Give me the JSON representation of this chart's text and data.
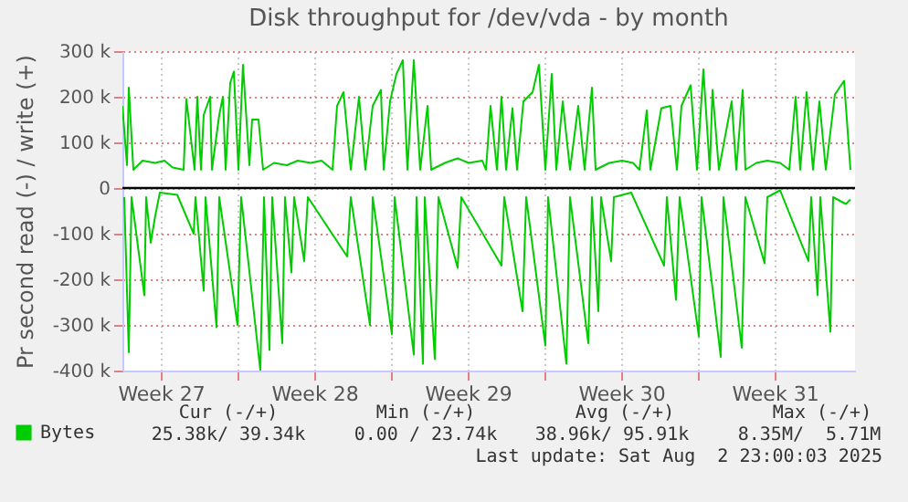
{
  "chart_data": {
    "type": "line",
    "title": "Disk throughput for /dev/vda - by month",
    "ylabel": "Pr second read (-) / write (+)",
    "xlim": [
      "2025-06-30T18:00",
      "2025-08-03T04:00"
    ],
    "xticks": [
      {
        "value": "2025-07-02T12:00",
        "label": "Week 27"
      },
      {
        "value": "2025-07-06T00:00",
        "label": null
      },
      {
        "value": "2025-07-09T12:00",
        "label": "Week 28"
      },
      {
        "value": "2025-07-13T00:00",
        "label": null
      },
      {
        "value": "2025-07-16T12:00",
        "label": "Week 29"
      },
      {
        "value": "2025-07-20T00:00",
        "label": null
      },
      {
        "value": "2025-07-23T12:00",
        "label": "Week 30"
      },
      {
        "value": "2025-07-27T00:00",
        "label": null
      },
      {
        "value": "2025-07-30T12:00",
        "label": "Week 31"
      }
    ],
    "ylim": [
      -400000,
      300000
    ],
    "yticks": [
      {
        "value": -400000,
        "label": "-400 k"
      },
      {
        "value": -300000,
        "label": "-300 k"
      },
      {
        "value": -200000,
        "label": "-200 k"
      },
      {
        "value": -100000,
        "label": "-100 k"
      },
      {
        "value": 0,
        "label": "0"
      },
      {
        "value": 100000,
        "label": "100 k"
      },
      {
        "value": 200000,
        "label": "200 k"
      },
      {
        "value": 300000,
        "label": "300 k"
      }
    ],
    "grid": true,
    "legend": "bottom left",
    "line_style": "solid",
    "ref_lines": [
      {
        "axis": "y",
        "value": 0,
        "color": "#000000"
      }
    ],
    "series": [
      {
        "name": "Bytes",
        "color": "#00cc00",
        "x": [
          "2025-06-30T18:00",
          "2025-06-30T23:00",
          "2025-07-01T01:00",
          "2025-07-01T06:00",
          "2025-07-01T16:00",
          "2025-07-02T06:00",
          "2025-07-02T16:00",
          "2025-07-03T01:00",
          "2025-07-03T13:00",
          "2025-07-03T16:00",
          "2025-07-04T01:00",
          "2025-07-04T04:00",
          "2025-07-04T08:00",
          "2025-07-04T11:00",
          "2025-07-04T18:00",
          "2025-07-04T20:00",
          "2025-07-05T04:00",
          "2025-07-05T08:00",
          "2025-07-05T11:00",
          "2025-07-05T16:00",
          "2025-07-05T20:00",
          "2025-07-06T01:00",
          "2025-07-06T06:00",
          "2025-07-06T13:00",
          "2025-07-06T16:00",
          "2025-07-06T23:00",
          "2025-07-07T04:00",
          "2025-07-07T16:00",
          "2025-07-08T06:00",
          "2025-07-08T18:00",
          "2025-07-09T08:00",
          "2025-07-09T20:00",
          "2025-07-10T08:00",
          "2025-07-10T13:00",
          "2025-07-10T20:00",
          "2025-07-11T04:00",
          "2025-07-11T13:00",
          "2025-07-11T20:00",
          "2025-07-12T04:00",
          "2025-07-12T13:00",
          "2025-07-12T16:00",
          "2025-07-12T23:00",
          "2025-07-13T06:00",
          "2025-07-13T13:00",
          "2025-07-13T18:00",
          "2025-07-14T01:00",
          "2025-07-14T08:00",
          "2025-07-14T16:00",
          "2025-07-14T20:00",
          "2025-07-15T11:00",
          "2025-07-16T01:00",
          "2025-07-16T13:00",
          "2025-07-17T04:00",
          "2025-07-17T08:00",
          "2025-07-17T13:00",
          "2025-07-17T20:00",
          "2025-07-18T01:00",
          "2025-07-18T06:00",
          "2025-07-18T13:00",
          "2025-07-18T18:00",
          "2025-07-19T01:00",
          "2025-07-19T11:00",
          "2025-07-19T18:00",
          "2025-07-20T01:00",
          "2025-07-20T08:00",
          "2025-07-20T13:00",
          "2025-07-20T20:00",
          "2025-07-21T04:00",
          "2025-07-21T13:00",
          "2025-07-21T20:00",
          "2025-07-22T04:00",
          "2025-07-22T08:00",
          "2025-07-22T23:00",
          "2025-07-23T13:00",
          "2025-07-24T01:00",
          "2025-07-24T08:00",
          "2025-07-24T16:00",
          "2025-07-24T20:00",
          "2025-07-25T08:00",
          "2025-07-25T18:00",
          "2025-07-26T01:00",
          "2025-07-26T06:00",
          "2025-07-26T16:00",
          "2025-07-26T23:00",
          "2025-07-27T06:00",
          "2025-07-27T13:00",
          "2025-07-27T16:00",
          "2025-07-27T23:00",
          "2025-07-28T13:00",
          "2025-07-28T18:00",
          "2025-07-29T01:00",
          "2025-07-29T04:00",
          "2025-07-29T16:00",
          "2025-07-30T04:00",
          "2025-07-30T18:00",
          "2025-07-31T04:00",
          "2025-07-31T11:00",
          "2025-07-31T16:00",
          "2025-07-31T23:00",
          "2025-08-01T06:00",
          "2025-08-01T13:00",
          "2025-08-01T20:00",
          "2025-08-02T06:00",
          "2025-08-02T16:00",
          "2025-08-02T23:00"
        ],
        "values": [
          180000,
          50000,
          220000,
          40000,
          60000,
          55000,
          60000,
          45000,
          40000,
          195000,
          40000,
          200000,
          40000,
          160000,
          200000,
          40000,
          160000,
          200000,
          40000,
          230000,
          255000,
          40000,
          270000,
          50000,
          150000,
          150000,
          40000,
          55000,
          50000,
          60000,
          55000,
          60000,
          40000,
          180000,
          210000,
          40000,
          200000,
          40000,
          180000,
          215000,
          40000,
          190000,
          250000,
          280000,
          40000,
          280000,
          40000,
          180000,
          40000,
          55000,
          65000,
          55000,
          60000,
          40000,
          180000,
          40000,
          200000,
          40000,
          175000,
          40000,
          190000,
          210000,
          270000,
          40000,
          250000,
          40000,
          190000,
          40000,
          180000,
          40000,
          220000,
          40000,
          55000,
          60000,
          55000,
          40000,
          170000,
          40000,
          175000,
          180000,
          40000,
          180000,
          225000,
          40000,
          260000,
          40000,
          215000,
          40000,
          190000,
          40000,
          215000,
          40000,
          55000,
          60000,
          55000,
          40000,
          200000,
          40000,
          210000,
          40000,
          190000,
          40000,
          205000,
          235000,
          40000
        ]
      },
      {
        "color": "#00cc00",
        "x": [
          "2025-06-30T20:00",
          "2025-07-01T01:00",
          "2025-07-01T04:00",
          "2025-07-01T18:00",
          "2025-07-01T20:00",
          "2025-07-02T01:00",
          "2025-07-02T06:00",
          "2025-07-02T11:00",
          "2025-07-03T06:00",
          "2025-07-04T00:00",
          "2025-07-04T02:00",
          "2025-07-04T11:00",
          "2025-07-04T13:00",
          "2025-07-05T01:00",
          "2025-07-05T04:00",
          "2025-07-06T00:00",
          "2025-07-06T04:00",
          "2025-07-07T01:00",
          "2025-07-07T05:00",
          "2025-07-07T11:00",
          "2025-07-07T14:00",
          "2025-07-08T01:00",
          "2025-07-08T04:00",
          "2025-07-08T11:00",
          "2025-07-08T14:00",
          "2025-07-09T01:00",
          "2025-07-09T05:00",
          "2025-07-11T00:00",
          "2025-07-11T04:00",
          "2025-07-12T01:00",
          "2025-07-12T04:00",
          "2025-07-13T01:00",
          "2025-07-13T04:00",
          "2025-07-14T01:00",
          "2025-07-14T04:00",
          "2025-07-14T11:00",
          "2025-07-14T13:00",
          "2025-07-15T00:00",
          "2025-07-15T04:00",
          "2025-07-16T01:00",
          "2025-07-16T05:00",
          "2025-07-18T01:00",
          "2025-07-18T04:00",
          "2025-07-19T00:00",
          "2025-07-19T04:00",
          "2025-07-20T01:00",
          "2025-07-20T04:00",
          "2025-07-21T00:00",
          "2025-07-21T04:00",
          "2025-07-22T00:00",
          "2025-07-22T04:00",
          "2025-07-22T11:00",
          "2025-07-22T14:00",
          "2025-07-23T01:00",
          "2025-07-23T04:00",
          "2025-07-23T23:00",
          "2025-07-25T11:00",
          "2025-07-25T14:00",
          "2025-07-26T00:00",
          "2025-07-26T04:00",
          "2025-07-27T01:00",
          "2025-07-27T04:00",
          "2025-07-28T01:00",
          "2025-07-28T04:00",
          "2025-07-29T00:00",
          "2025-07-29T04:00",
          "2025-07-30T01:00",
          "2025-07-30T04:00",
          "2025-07-30T18:00",
          "2025-08-01T01:00",
          "2025-08-01T04:00",
          "2025-08-01T11:00",
          "2025-08-01T14:00",
          "2025-08-02T01:00",
          "2025-08-02T04:00",
          "2025-08-02T18:00",
          "2025-08-02T23:00"
        ],
        "values": [
          -20000,
          -360000,
          -20000,
          -235000,
          -20000,
          -120000,
          -60000,
          -10000,
          -15000,
          -100000,
          -20000,
          -225000,
          -20000,
          -305000,
          -20000,
          -300000,
          -20000,
          -400000,
          -20000,
          -355000,
          -20000,
          -340000,
          -20000,
          -185000,
          -20000,
          -160000,
          -20000,
          -150000,
          -20000,
          -300000,
          -20000,
          -320000,
          -20000,
          -365000,
          -20000,
          -385000,
          -20000,
          -375000,
          -20000,
          -175000,
          -20000,
          -170000,
          -20000,
          -270000,
          -20000,
          -345000,
          -20000,
          -385000,
          -20000,
          -340000,
          -20000,
          -270000,
          -20000,
          -160000,
          -20000,
          -10000,
          -170000,
          -20000,
          -245000,
          -20000,
          -325000,
          -20000,
          -370000,
          -20000,
          -350000,
          -20000,
          -165000,
          -20000,
          -5000,
          -160000,
          -20000,
          -235000,
          -20000,
          -315000,
          -20000,
          -35000,
          -25000
        ]
      }
    ],
    "annotations": [
      "Cur (-/+)",
      "Min (-/+)",
      "Avg (-/+)",
      "Max (-/+)",
      "25.38k/ 39.34k",
      "0.00 / 23.74k",
      "38.96k/ 95.91k",
      "8.35M/  5.71M",
      "Last update: Sat Aug  2 23:00:03 2025"
    ]
  }
}
